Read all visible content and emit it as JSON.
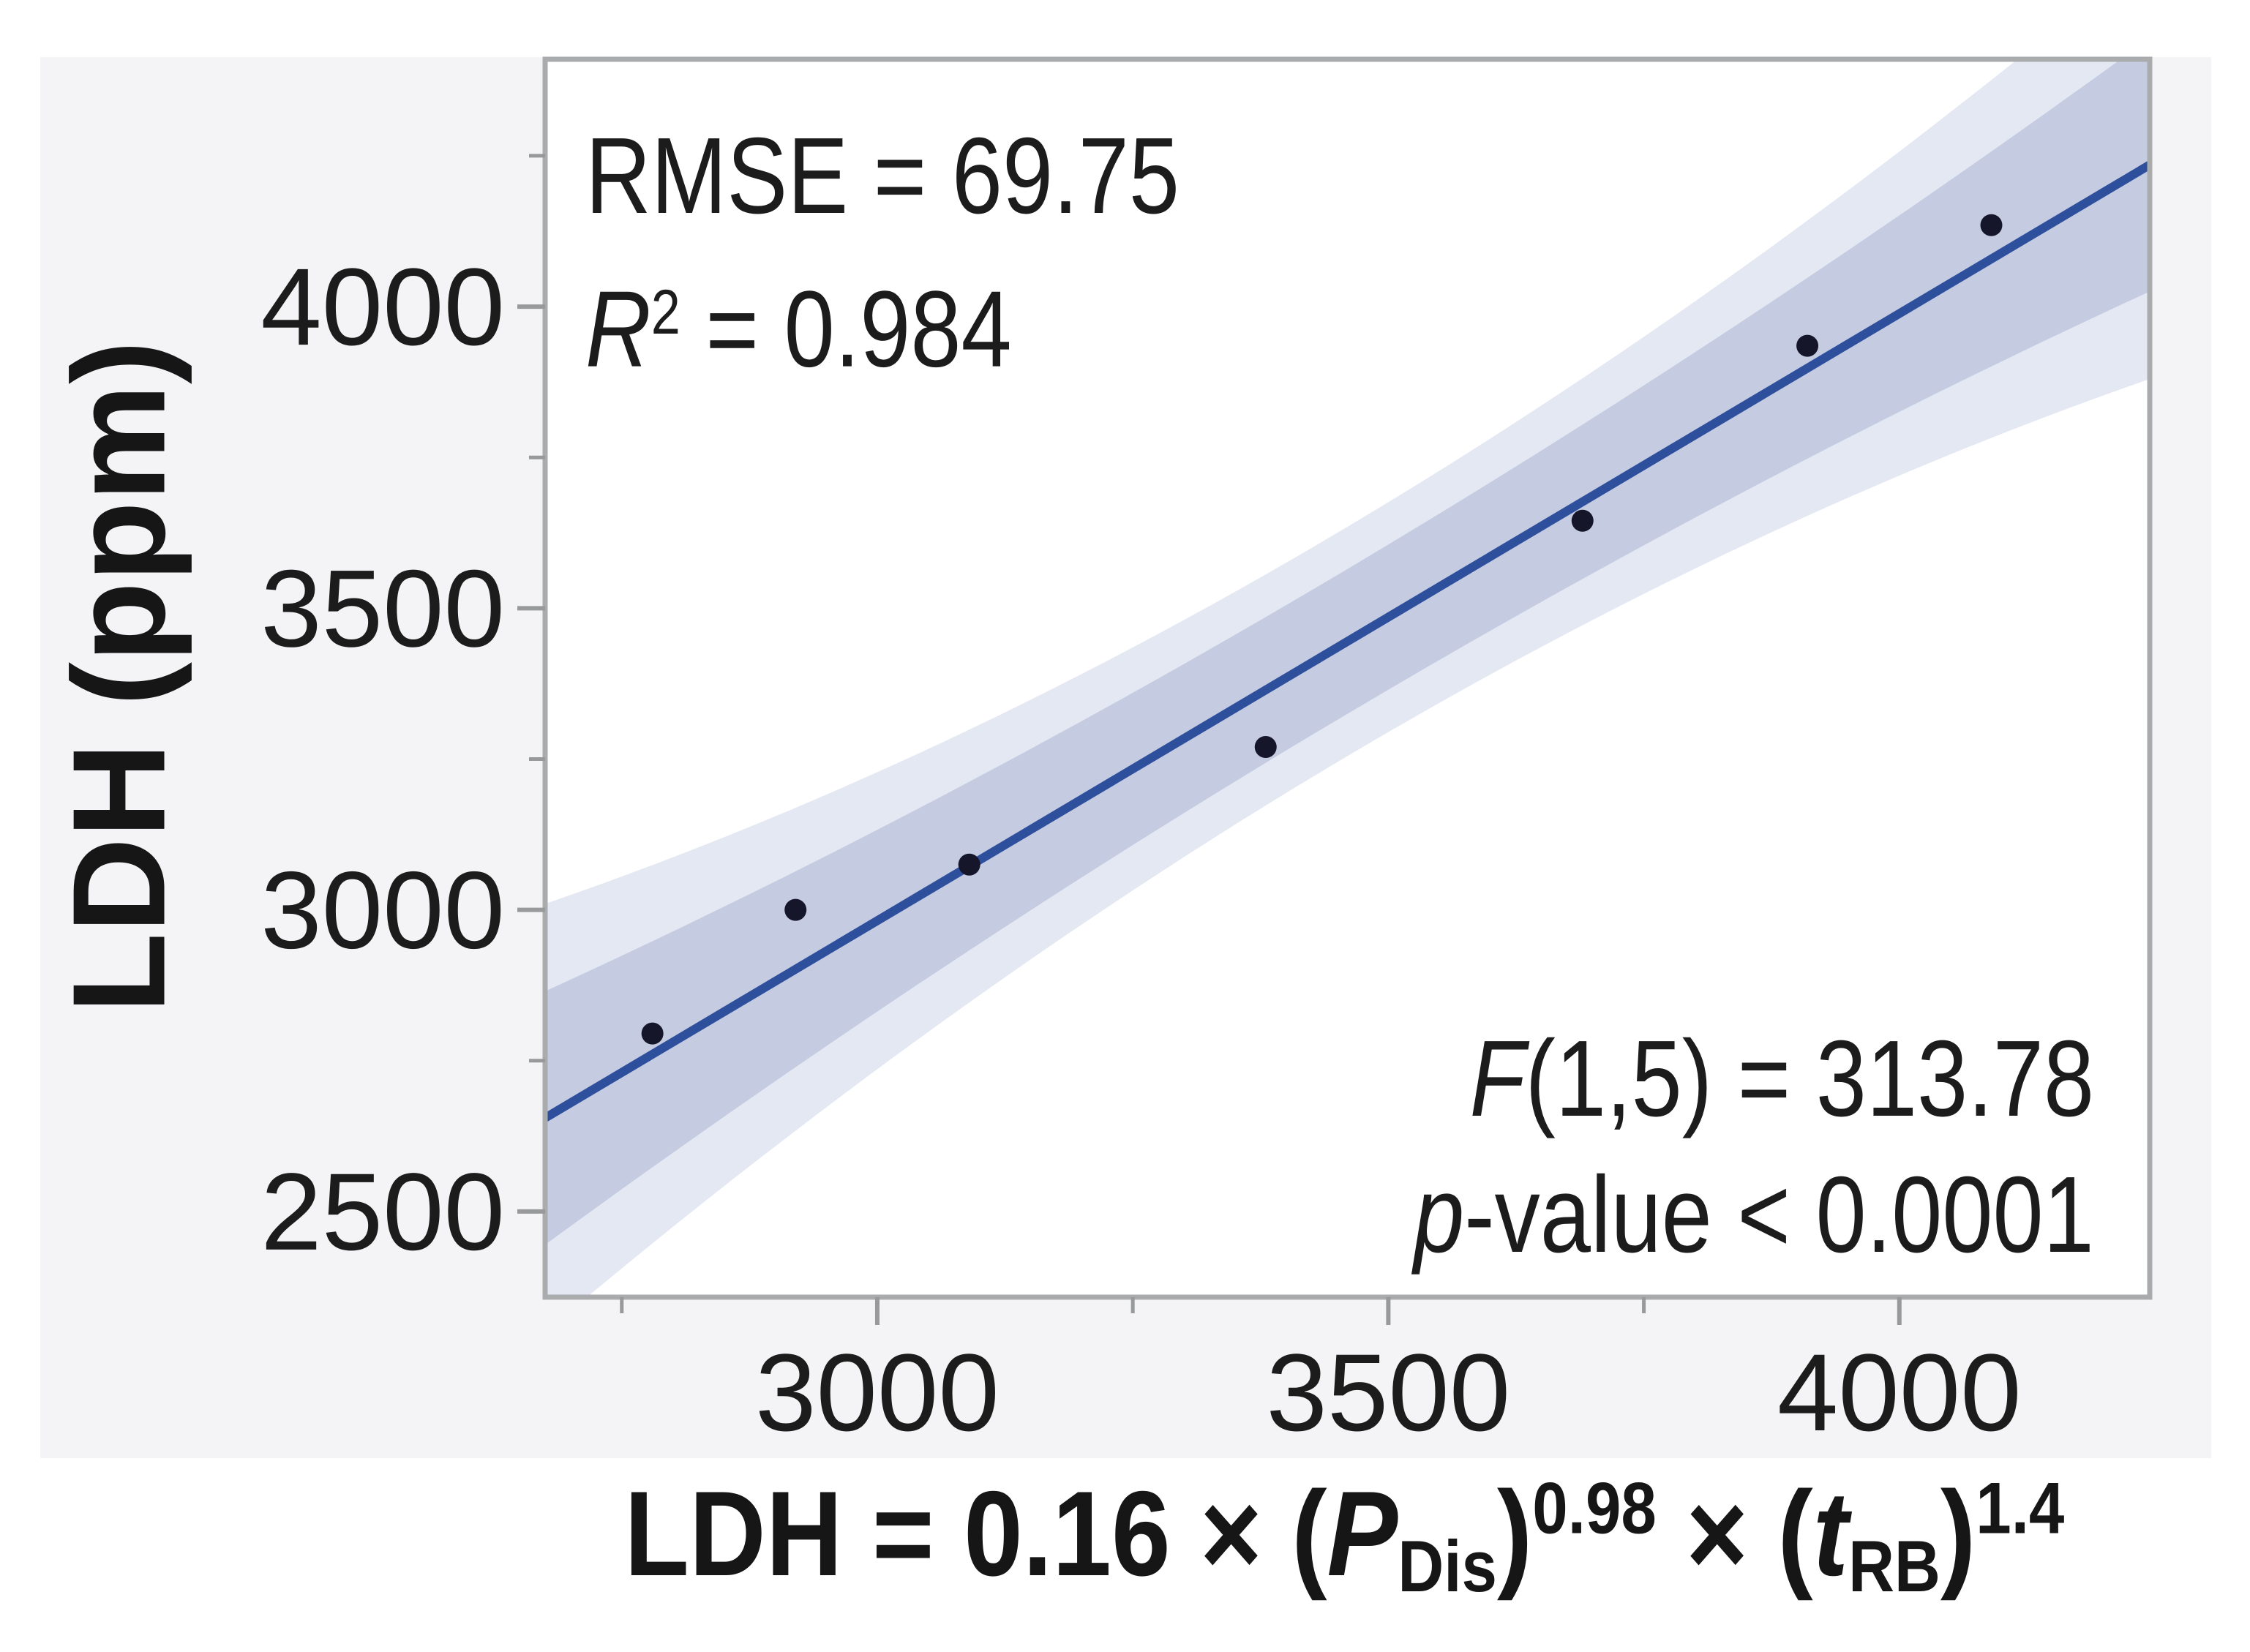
{
  "chart_data": {
    "type": "scatter",
    "title": "",
    "ylabel": "LDH (ppm)",
    "xlabel_plain": "LDH = 0.16 × (P_Dis)^0.98 × (t_RB)^1.4",
    "xlim": [
      2675,
      4245
    ],
    "ylim": [
      2358,
      4410
    ],
    "x_major_ticks": [
      3000,
      3500,
      4000
    ],
    "x_minor_ticks": [
      2750,
      3250,
      3750,
      4250
    ],
    "y_major_ticks": [
      2500,
      3000,
      3500,
      4000
    ],
    "y_minor_ticks": [
      2750,
      3250,
      3750,
      4250
    ],
    "grid": false,
    "legend": "none",
    "points": [
      {
        "x": 2780,
        "y": 2795
      },
      {
        "x": 2920,
        "y": 3000
      },
      {
        "x": 3090,
        "y": 3075
      },
      {
        "x": 3380,
        "y": 3270
      },
      {
        "x": 3690,
        "y": 3645
      },
      {
        "x": 3910,
        "y": 3935
      },
      {
        "x": 4090,
        "y": 4135
      }
    ],
    "fit_line": {
      "x": [
        2675,
        4245
      ],
      "y": [
        2655,
        4235
      ]
    },
    "confidence_band": {
      "center_x": 3455,
      "half_width_center": 120,
      "half_width_edge": 210
    },
    "prediction_band": {
      "center_x": 3455,
      "half_width_center": 190,
      "half_width_edge": 355
    },
    "stats": {
      "rmse": "69.75",
      "r_squared": "0.984",
      "f_statistic": "313.78",
      "f_df": "(1,5)",
      "p_value": "< 0.0001"
    }
  },
  "annotations": {
    "top_left": {
      "lines": [
        {
          "segments": [
            {
              "text": "RMSE = 69.75",
              "style": "normal"
            }
          ]
        },
        {
          "segments": [
            {
              "text": "R",
              "style": "italic"
            },
            {
              "text": "2",
              "style": "sup"
            },
            {
              "text": " = 0.984",
              "style": "normal"
            }
          ]
        }
      ]
    },
    "bottom_right": {
      "lines": [
        {
          "segments": [
            {
              "text": "F",
              "style": "italic"
            },
            {
              "text": "(1,5) = 313.78",
              "style": "normal"
            }
          ]
        },
        {
          "segments": [
            {
              "text": "p",
              "style": "italic"
            },
            {
              "text": "-value < 0.0001",
              "style": "normal"
            }
          ]
        }
      ]
    }
  },
  "formula_segments": [
    {
      "text": "LDH = 0.16 × (",
      "style": "normal"
    },
    {
      "text": "P",
      "style": "italic"
    },
    {
      "text": "Dis",
      "style": "sub"
    },
    {
      "text": ")",
      "style": "normal"
    },
    {
      "text": "0.98",
      "style": "sup"
    },
    {
      "text": " × (",
      "style": "normal"
    },
    {
      "text": "t",
      "style": "italic"
    },
    {
      "text": "RB",
      "style": "sub"
    },
    {
      "text": ")",
      "style": "normal"
    },
    {
      "text": "1.4",
      "style": "sup"
    }
  ],
  "style": {
    "fit_line_color": "#2e4f9c",
    "confidence_band_color": "#c5cbe1",
    "prediction_band_color": "#e4e8f3",
    "point_color": "#16162b",
    "frame_color": "#a9abad",
    "tick_color": "#97999b",
    "text_color": "#1c1c1c",
    "panel_background": "#f4f4f6",
    "plot_background": "#ffffff"
  }
}
